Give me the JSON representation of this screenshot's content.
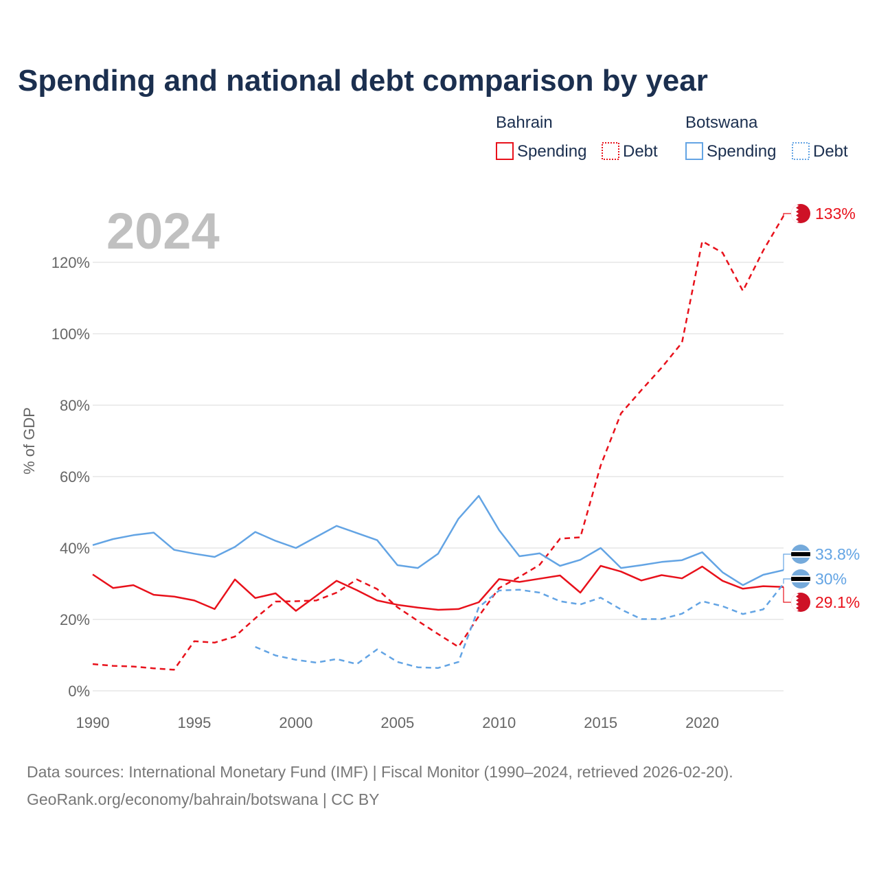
{
  "colors": {
    "bahrain": "#e8111b",
    "botswana": "#63a4e4",
    "title": "#1b2f4f",
    "axis_text": "#666666",
    "grid": "#e6e6e6",
    "watermark": "#c0c0c0"
  },
  "chart_data": {
    "type": "line",
    "title": "Spending and national debt comparison by year",
    "year_label": "2024",
    "ylabel": "% of GDP",
    "xlabel": "",
    "xlim": [
      1990,
      2024
    ],
    "ylim": [
      0,
      135
    ],
    "x_ticks": [
      1990,
      1995,
      2000,
      2005,
      2010,
      2015,
      2020
    ],
    "x_tick_labels": [
      "1990",
      "1995",
      "2000",
      "2005",
      "2010",
      "2015",
      "2020"
    ],
    "y_ticks": [
      0,
      20,
      40,
      60,
      80,
      100,
      120
    ],
    "y_tick_labels": [
      "0%",
      "20%",
      "40%",
      "60%",
      "80%",
      "100%",
      "120%"
    ],
    "legend": {
      "groups": [
        {
          "country": "Bahrain",
          "items": [
            "Spending",
            "Debt"
          ]
        },
        {
          "country": "Botswana",
          "items": [
            "Spending",
            "Debt"
          ]
        }
      ]
    },
    "series": [
      {
        "name": "Bahrain Spending",
        "country": "bahrain",
        "style": "solid",
        "x": [
          1990,
          1991,
          1992,
          1993,
          1994,
          1995,
          1996,
          1997,
          1998,
          1999,
          2000,
          2001,
          2002,
          2003,
          2004,
          2005,
          2006,
          2007,
          2008,
          2009,
          2010,
          2011,
          2012,
          2013,
          2014,
          2015,
          2016,
          2017,
          2018,
          2019,
          2020,
          2021,
          2022,
          2023,
          2024
        ],
        "values": [
          32.6,
          28.8,
          29.6,
          26.9,
          26.4,
          25.3,
          22.9,
          31.2,
          26.0,
          27.3,
          22.4,
          26.6,
          30.8,
          28.2,
          25.3,
          24.1,
          23.3,
          22.7,
          22.9,
          24.8,
          31.3,
          30.5,
          31.4,
          32.3,
          27.5,
          35.0,
          33.4,
          30.9,
          32.4,
          31.5,
          34.8,
          30.8,
          28.6,
          29.3,
          29.1
        ]
      },
      {
        "name": "Bahrain Debt",
        "country": "bahrain",
        "style": "dashed",
        "x": [
          1990,
          1991,
          1992,
          1993,
          1994,
          1995,
          1996,
          1997,
          1998,
          1999,
          2000,
          2001,
          2002,
          2003,
          2004,
          2005,
          2006,
          2007,
          2008,
          2009,
          2010,
          2011,
          2012,
          2013,
          2014,
          2015,
          2016,
          2017,
          2018,
          2019,
          2020,
          2021,
          2022,
          2023,
          2024
        ],
        "values": [
          7.5,
          7.0,
          6.8,
          6.3,
          5.9,
          13.9,
          13.5,
          15.2,
          20.3,
          25.0,
          25.1,
          25.3,
          27.5,
          31.2,
          28.5,
          23.4,
          19.6,
          15.9,
          12.3,
          20.9,
          28.8,
          31.9,
          35.3,
          42.6,
          43.0,
          63.1,
          77.7,
          84.2,
          90.5,
          97.5,
          125.9,
          122.7,
          112.0,
          123.3,
          133.0
        ]
      },
      {
        "name": "Botswana Spending",
        "country": "botswana",
        "style": "solid",
        "x": [
          1990,
          1991,
          1992,
          1993,
          1994,
          1995,
          1996,
          1997,
          1998,
          1999,
          2000,
          2001,
          2002,
          2003,
          2004,
          2005,
          2006,
          2007,
          2008,
          2009,
          2010,
          2011,
          2012,
          2013,
          2014,
          2015,
          2016,
          2017,
          2018,
          2019,
          2020,
          2021,
          2022,
          2023,
          2024
        ],
        "values": [
          40.8,
          42.5,
          43.6,
          44.3,
          39.5,
          38.4,
          37.5,
          40.3,
          44.5,
          42.0,
          40.0,
          43.1,
          46.2,
          44.2,
          42.2,
          35.2,
          34.4,
          38.4,
          48.2,
          54.6,
          45.0,
          37.7,
          38.5,
          35.0,
          36.7,
          40.0,
          34.4,
          35.2,
          36.1,
          36.6,
          38.8,
          33.2,
          29.6,
          32.5,
          33.8
        ]
      },
      {
        "name": "Botswana Debt",
        "country": "botswana",
        "style": "dashed",
        "x": [
          1998,
          1999,
          2000,
          2001,
          2002,
          2003,
          2004,
          2005,
          2006,
          2007,
          2008,
          2009,
          2010,
          2011,
          2012,
          2013,
          2014,
          2015,
          2016,
          2017,
          2018,
          2019,
          2020,
          2021,
          2022,
          2023,
          2024
        ],
        "values": [
          12.3,
          9.9,
          8.7,
          7.9,
          8.9,
          7.5,
          11.6,
          8.1,
          6.6,
          6.4,
          8.1,
          23.4,
          28.1,
          28.3,
          27.5,
          25.1,
          24.2,
          26.1,
          22.8,
          20.1,
          20.1,
          21.6,
          25.1,
          23.7,
          21.5,
          22.8,
          30.0
        ]
      }
    ],
    "end_labels": [
      {
        "text": "133%",
        "country": "bahrain",
        "flag": "bahrain",
        "value": 133.0
      },
      {
        "text": "33.8%",
        "country": "botswana",
        "flag": "botswana",
        "value": 33.8
      },
      {
        "text": "30%",
        "country": "botswana",
        "flag": "botswana",
        "value": 30.0
      },
      {
        "text": "29.1%",
        "country": "bahrain",
        "flag": "bahrain",
        "value": 29.1
      }
    ]
  },
  "footer": {
    "source_line1": "Data sources: International Monetary Fund (IMF) | Fiscal Monitor (1990–2024, retrieved 2026-02-20).",
    "source_line2": "GeoRank.org/economy/bahrain/botswana | CC BY"
  }
}
